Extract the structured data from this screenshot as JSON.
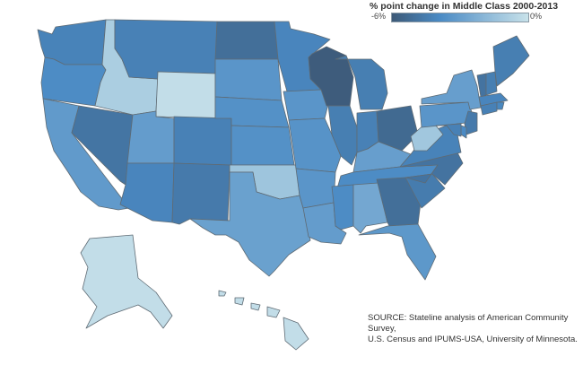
{
  "legend": {
    "title": "% point change in Middle Class 2000-2013",
    "min_label": "-6%",
    "max_label": "0%",
    "min_value": -6,
    "max_value": 0,
    "color_min": "#3d5a78",
    "color_mid": "#4a8ac4",
    "color_max": "#c8e2ea"
  },
  "source": {
    "line1": "SOURCE: Stateline analysis of American Community Survey,",
    "line2": "U.S. Census and IPUMS-USA, University of Minnesota."
  },
  "states": [
    {
      "id": "WA",
      "value": -4.2
    },
    {
      "id": "OR",
      "value": -3.8
    },
    {
      "id": "CA",
      "value": -3.2
    },
    {
      "id": "NV",
      "value": -4.8
    },
    {
      "id": "ID",
      "value": -0.9
    },
    {
      "id": "MT",
      "value": -4.3
    },
    {
      "id": "WY",
      "value": -0.2
    },
    {
      "id": "UT",
      "value": -3.1
    },
    {
      "id": "AZ",
      "value": -4.1
    },
    {
      "id": "CO",
      "value": -4.3
    },
    {
      "id": "NM",
      "value": -4.6
    },
    {
      "id": "ND",
      "value": -5.1
    },
    {
      "id": "SD",
      "value": -3.4
    },
    {
      "id": "NE",
      "value": -3.6
    },
    {
      "id": "KS",
      "value": -3.6
    },
    {
      "id": "OK",
      "value": -1.3
    },
    {
      "id": "TX",
      "value": -2.9
    },
    {
      "id": "MN",
      "value": -4.1
    },
    {
      "id": "IA",
      "value": -3.4
    },
    {
      "id": "MO",
      "value": -3.5
    },
    {
      "id": "AR",
      "value": -3.4
    },
    {
      "id": "LA",
      "value": -3.1
    },
    {
      "id": "WI",
      "value": -5.9
    },
    {
      "id": "IL",
      "value": -4.4
    },
    {
      "id": "MI",
      "value": -4.4
    },
    {
      "id": "IN",
      "value": -4.3
    },
    {
      "id": "OH",
      "value": -5.3
    },
    {
      "id": "KY",
      "value": -3.0
    },
    {
      "id": "TN",
      "value": -3.8
    },
    {
      "id": "MS",
      "value": -3.8
    },
    {
      "id": "AL",
      "value": -2.6
    },
    {
      "id": "GA",
      "value": -5.1
    },
    {
      "id": "FL",
      "value": -3.3
    },
    {
      "id": "SC",
      "value": -4.5
    },
    {
      "id": "NC",
      "value": -4.9
    },
    {
      "id": "VA",
      "value": -4.2
    },
    {
      "id": "WV",
      "value": -1.2
    },
    {
      "id": "PA",
      "value": -3.4
    },
    {
      "id": "NY",
      "value": -3.0
    },
    {
      "id": "VT",
      "value": -4.9
    },
    {
      "id": "NH",
      "value": -4.4
    },
    {
      "id": "ME",
      "value": -4.4
    },
    {
      "id": "MA",
      "value": -4.1
    },
    {
      "id": "CT",
      "value": -4.3
    },
    {
      "id": "RI",
      "value": -4.0
    },
    {
      "id": "NJ",
      "value": -4.6
    },
    {
      "id": "DE",
      "value": -3.9
    },
    {
      "id": "MD",
      "value": -4.3
    },
    {
      "id": "AK",
      "value": -0.2
    },
    {
      "id": "HI",
      "value": -0.2
    }
  ]
}
